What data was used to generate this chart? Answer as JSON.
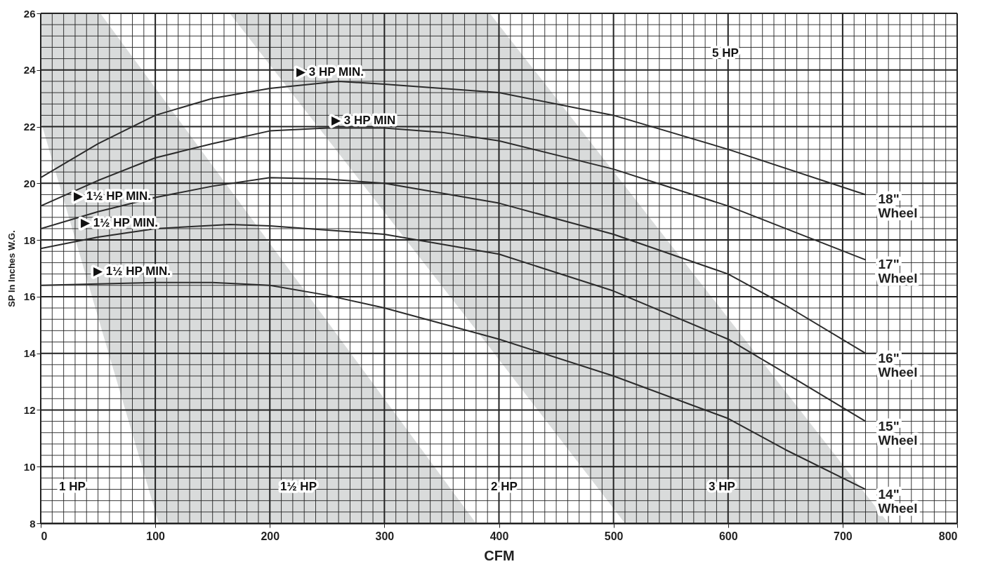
{
  "chart_data": {
    "type": "line",
    "xlabel": "CFM",
    "ylabel": "SP In Inches W.G.",
    "xlim": [
      0,
      800
    ],
    "ylim": [
      8,
      26
    ],
    "xticks": [
      0,
      {
        "value": 10,
        "label": null
      },
      {
        "value": 20,
        "label": null
      },
      {
        "value": 30,
        "label": null
      },
      {
        "value": 40,
        "label": null
      },
      {
        "value": 50,
        "label": null
      },
      {
        "value": 60,
        "label": null
      },
      {
        "value": 70,
        "label": null
      },
      {
        "value": 80,
        "label": null
      },
      {
        "value": 90,
        "label": null
      },
      100,
      {
        "value": 110,
        "label": null
      },
      {
        "value": 120,
        "label": null
      },
      {
        "value": 130,
        "label": null
      },
      {
        "value": 140,
        "label": null
      },
      {
        "value": 150,
        "label": null
      },
      {
        "value": 160,
        "label": null
      },
      {
        "value": 170,
        "label": null
      },
      {
        "value": 180,
        "label": null
      },
      {
        "value": 190,
        "label": null
      },
      200,
      {
        "value": 210,
        "label": null
      },
      {
        "value": 220,
        "label": null
      },
      {
        "value": 230,
        "label": null
      },
      {
        "value": 240,
        "label": null
      },
      {
        "value": 250,
        "label": null
      },
      {
        "value": 260,
        "label": null
      },
      {
        "value": 270,
        "label": null
      },
      {
        "value": 280,
        "label": null
      },
      {
        "value": 290,
        "label": null
      },
      300,
      {
        "value": 310,
        "label": null
      },
      {
        "value": 320,
        "label": null
      },
      {
        "value": 330,
        "label": null
      },
      {
        "value": 340,
        "label": null
      },
      {
        "value": 350,
        "label": null
      },
      {
        "value": 360,
        "label": null
      },
      {
        "value": 370,
        "label": null
      },
      {
        "value": 380,
        "label": null
      },
      {
        "value": 390,
        "label": null
      },
      400,
      {
        "value": 410,
        "label": null
      },
      {
        "value": 420,
        "label": null
      },
      {
        "value": 430,
        "label": null
      },
      {
        "value": 440,
        "label": null
      },
      {
        "value": 450,
        "label": null
      },
      {
        "value": 460,
        "label": null
      },
      {
        "value": 470,
        "label": null
      },
      {
        "value": 480,
        "label": null
      },
      {
        "value": 490,
        "label": null
      },
      500,
      {
        "value": 510,
        "label": null
      },
      {
        "value": 520,
        "label": null
      },
      {
        "value": 530,
        "label": null
      },
      {
        "value": 540,
        "label": null
      },
      {
        "value": 550,
        "label": null
      },
      {
        "value": 560,
        "label": null
      },
      {
        "value": 570,
        "label": null
      },
      {
        "value": 580,
        "label": null
      },
      {
        "value": 590,
        "label": null
      },
      600,
      {
        "value": 610,
        "label": null
      },
      {
        "value": 620,
        "label": null
      },
      {
        "value": 630,
        "label": null
      },
      {
        "value": 640,
        "label": null
      },
      {
        "value": 650,
        "label": null
      },
      {
        "value": 660,
        "label": null
      },
      {
        "value": 670,
        "label": null
      },
      {
        "value": 680,
        "label": null
      },
      {
        "value": 690,
        "label": null
      },
      700,
      {
        "value": 710,
        "label": null
      },
      {
        "value": 720,
        "label": null
      },
      {
        "value": 730,
        "label": null
      },
      {
        "value": 740,
        "label": null
      },
      {
        "value": 750,
        "label": null
      },
      {
        "value": 760,
        "label": null
      },
      {
        "value": 770,
        "label": null
      },
      {
        "value": 780,
        "label": null
      },
      {
        "value": 790,
        "label": null
      },
      800
    ],
    "yticks": [
      8,
      {
        "value": 8.4,
        "label": null
      },
      {
        "value": 8.8,
        "label": null
      },
      {
        "value": 9.2,
        "label": null
      },
      {
        "value": 9.6,
        "label": null
      },
      10,
      {
        "value": 10.4,
        "label": null
      },
      {
        "value": 10.8,
        "label": null
      },
      {
        "value": 11.2,
        "label": null
      },
      {
        "value": 11.6,
        "label": null
      },
      12,
      {
        "value": 12.4,
        "label": null
      },
      {
        "value": 12.8,
        "label": null
      },
      {
        "value": 13.2,
        "label": null
      },
      {
        "value": 13.6,
        "label": null
      },
      14,
      {
        "value": 14.4,
        "label": null
      },
      {
        "value": 14.8,
        "label": null
      },
      {
        "value": 15.2,
        "label": null
      },
      {
        "value": 15.6,
        "label": null
      },
      16,
      {
        "value": 16.4,
        "label": null
      },
      {
        "value": 16.8,
        "label": null
      },
      {
        "value": 17.2,
        "label": null
      },
      {
        "value": 17.6,
        "label": null
      },
      18,
      {
        "value": 18.4,
        "label": null
      },
      {
        "value": 18.8,
        "label": null
      },
      {
        "value": 19.2,
        "label": null
      },
      {
        "value": 19.6,
        "label": null
      },
      20,
      {
        "value": 20.4,
        "label": null
      },
      {
        "value": 20.8,
        "label": null
      },
      {
        "value": 21.2,
        "label": null
      },
      {
        "value": 21.6,
        "label": null
      },
      22,
      {
        "value": 22.4,
        "label": null
      },
      {
        "value": 22.8,
        "label": null
      },
      {
        "value": 23.2,
        "label": null
      },
      {
        "value": 23.6,
        "label": null
      },
      24,
      {
        "value": 24.4,
        "label": null
      },
      {
        "value": 24.8,
        "label": null
      },
      {
        "value": 25.2,
        "label": null
      },
      {
        "value": 25.6,
        "label": null
      },
      26
    ],
    "grid": true,
    "series": [
      {
        "type": "area",
        "color": "#d9dbdb",
        "x": [
          165,
          392,
          510,
          740
        ],
        "values": [
          26,
          26,
          19.9,
          8
        ]
      },
      {
        "type": "area",
        "color": "#ffffff",
        "x": [
          165,
          392,
          510
        ],
        "values": [
          26,
          14.2,
          8
        ]
      },
      {
        "type": "area",
        "color": "#d9dbdb",
        "x": [
          0,
          52,
          103,
          380
        ],
        "values": [
          26,
          26,
          23.2,
          8
        ]
      },
      {
        "type": "area",
        "color": "#ffffff",
        "x": [
          0,
          52,
          103
        ],
        "values": [
          22.2,
          15.0,
          8
        ]
      },
      {
        "name": "18\" Wheel",
        "color": "#2b2b2b",
        "x": [
          0,
          50,
          100,
          150,
          200,
          260,
          300,
          400,
          500,
          600,
          720
        ],
        "values": [
          20.2,
          21.4,
          22.4,
          23.0,
          23.35,
          23.6,
          23.5,
          23.2,
          22.4,
          21.2,
          19.6
        ]
      },
      {
        "name": "17\" Wheel",
        "color": "#2b2b2b",
        "x": [
          0,
          50,
          100,
          150,
          200,
          250,
          300,
          350,
          400,
          500,
          600,
          720
        ],
        "values": [
          19.2,
          20.1,
          20.9,
          21.4,
          21.85,
          21.95,
          21.95,
          21.8,
          21.5,
          20.5,
          19.2,
          17.3
        ]
      },
      {
        "name": "16\" Wheel",
        "color": "#2b2b2b",
        "x": [
          0,
          50,
          100,
          150,
          200,
          250,
          300,
          400,
          500,
          600,
          650,
          720
        ],
        "values": [
          18.4,
          19.0,
          19.5,
          19.9,
          20.2,
          20.15,
          20.0,
          19.3,
          18.2,
          16.8,
          15.7,
          14.0
        ]
      },
      {
        "name": "15\" Wheel",
        "color": "#2b2b2b",
        "x": [
          0,
          50,
          100,
          165,
          200,
          300,
          400,
          500,
          600,
          650,
          720
        ],
        "values": [
          17.7,
          18.1,
          18.4,
          18.55,
          18.5,
          18.2,
          17.5,
          16.2,
          14.5,
          13.3,
          11.6
        ]
      },
      {
        "name": "14\" Wheel",
        "color": "#2b2b2b",
        "x": [
          0,
          50,
          100,
          150,
          200,
          250,
          300,
          400,
          500,
          600,
          650,
          720
        ],
        "values": [
          16.4,
          16.45,
          16.5,
          16.5,
          16.4,
          16.05,
          15.6,
          14.5,
          13.2,
          11.7,
          10.6,
          9.2
        ]
      }
    ],
    "annotations": [
      "▶ 3 HP MIN.",
      "▶ 3 HP MIN",
      "▶ 1½ HP MIN.",
      "▶ 1½ HP MIN.",
      "▶ 1½ HP MIN.",
      "1 HP",
      "1½ HP",
      "2 HP",
      "3 HP",
      "5 HP"
    ]
  }
}
